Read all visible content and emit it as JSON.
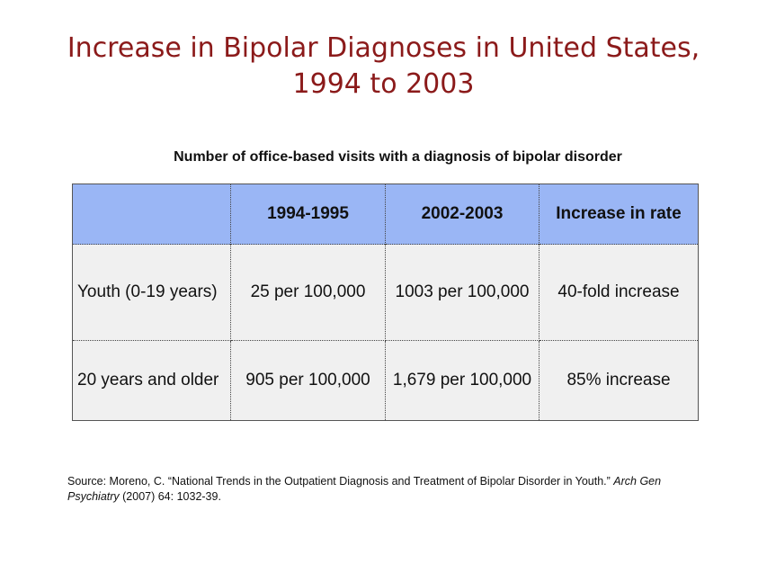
{
  "slide": {
    "title_line1": "Increase in Bipolar Diagnoses in United States,",
    "title_line2": "1994 to 2003"
  },
  "table": {
    "caption": "Number of office-based visits with a diagnosis of bipolar disorder",
    "headers": [
      "",
      "1994-1995",
      "2002-2003",
      "Increase in rate"
    ],
    "rows": [
      [
        "Youth (0-19 years)",
        "25 per 100,000",
        "1003 per 100,000",
        "40-fold increase"
      ],
      [
        "20 years and older",
        "905 per 100,000",
        "1,679 per 100,000",
        "85% increase"
      ]
    ],
    "colors": {
      "header_bg": "#9ab6f5",
      "body_bg": "#f0f0f0",
      "title_color": "#8b1a1a"
    }
  },
  "source": {
    "prefix": "Source: Moreno, C. “National Trends in the Outpatient Diagnosis and Treatment of Bipolar Disorder in Youth.” ",
    "journal": "Arch Gen Psychiatry",
    "suffix": " (2007) 64: 1032-39."
  }
}
